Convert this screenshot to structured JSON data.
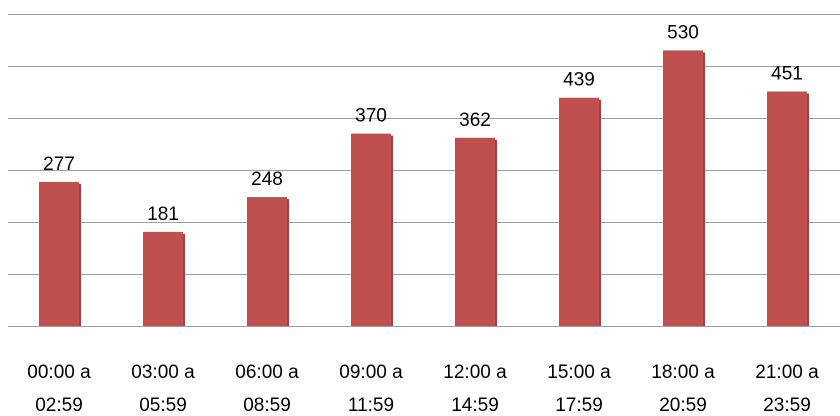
{
  "chart_data": {
    "type": "bar",
    "categories": [
      [
        "00:00 a",
        "02:59"
      ],
      [
        "03:00 a",
        "05:59"
      ],
      [
        "06:00 a",
        "08:59"
      ],
      [
        "09:00 a",
        "11:59"
      ],
      [
        "12:00 a",
        "14:59"
      ],
      [
        "15:00 a",
        "17:59"
      ],
      [
        "18:00 a",
        "20:59"
      ],
      [
        "21:00 a",
        "23:59"
      ]
    ],
    "values": [
      277,
      181,
      248,
      370,
      362,
      439,
      530,
      451
    ],
    "title": "",
    "xlabel": "",
    "ylabel": "",
    "ylim": [
      0,
      600
    ],
    "grid": true,
    "bar_color": "#c0504d",
    "gridline_color": "#9e9e9e"
  }
}
